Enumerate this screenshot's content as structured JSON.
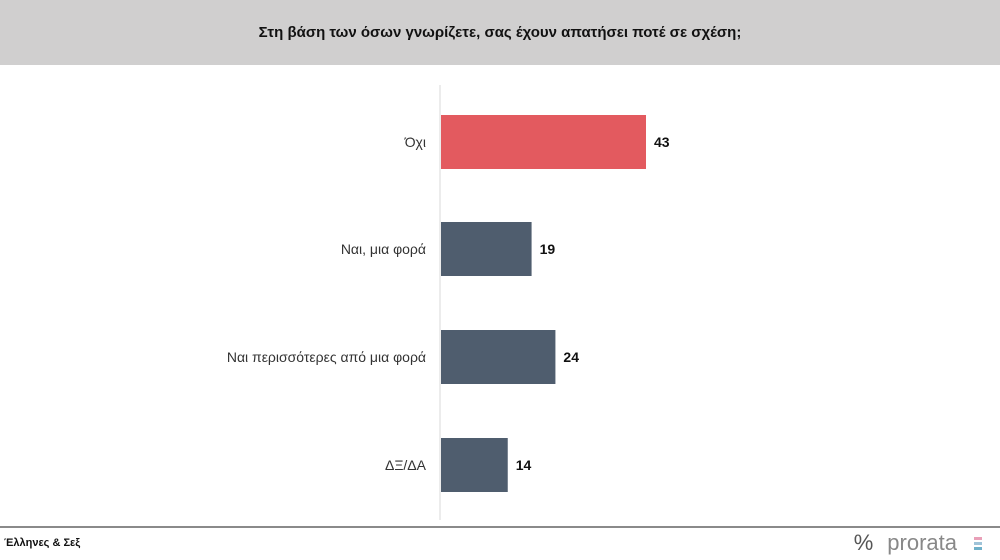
{
  "chart_data": {
    "type": "bar",
    "orientation": "horizontal",
    "title": "Στη βάση των όσων γνωρίζετε, σας έχουν απατήσει ποτέ σε σχέση;",
    "categories": [
      "Όχι",
      "Ναι, μια φορά",
      "Ναι περισσότερες από μια φορά",
      "ΔΞ/ΔΑ"
    ],
    "values": [
      43,
      19,
      24,
      14
    ],
    "colors": [
      "#e35a5f",
      "#4f5d6e",
      "#4f5d6e",
      "#4f5d6e"
    ],
    "data_labels": true,
    "grid": false
  },
  "footer": {
    "source": "Έλληνες & Σεξ",
    "logo_symbol": "%",
    "logo_text": "prorata"
  }
}
